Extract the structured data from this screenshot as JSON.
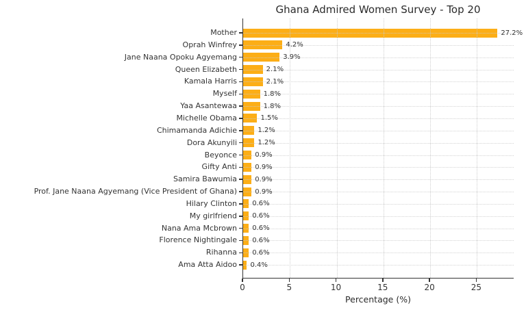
{
  "chart_data": {
    "type": "bar",
    "orientation": "horizontal",
    "title": "Ghana Admired Women Survey - Top 20",
    "xlabel": "Percentage (%)",
    "ylabel": "",
    "categories": [
      "Mother",
      "Oprah Winfrey",
      "Jane Naana Opoku Agyemang",
      "Queen Elizabeth",
      "Kamala Harris",
      "Myself",
      "Yaa Asantewaa",
      "Michelle Obama",
      "Chimamanda Adichie",
      "Dora Akunyili",
      "Beyonce",
      "Gifty Anti",
      "Samira Bawumia",
      "Prof. Jane Naana Agyemang (Vice President of Ghana)",
      "Hilary Clinton",
      "My girlfriend",
      "Nana Ama Mcbrown",
      "Florence Nightingale",
      "Rihanna",
      "Ama Atta Aidoo"
    ],
    "values": [
      27.2,
      4.2,
      3.9,
      2.1,
      2.1,
      1.8,
      1.8,
      1.5,
      1.2,
      1.2,
      0.9,
      0.9,
      0.9,
      0.9,
      0.6,
      0.6,
      0.6,
      0.6,
      0.6,
      0.4
    ],
    "value_labels": [
      "27.2%",
      "4.2%",
      "3.9%",
      "2.1%",
      "2.1%",
      "1.8%",
      "1.8%",
      "1.5%",
      "1.2%",
      "1.2%",
      "0.9%",
      "0.9%",
      "0.9%",
      "0.9%",
      "0.6%",
      "0.6%",
      "0.6%",
      "0.6%",
      "0.6%",
      "0.4%"
    ],
    "xlim": [
      0,
      29.0
    ],
    "xticks": [
      0,
      5,
      10,
      15,
      20,
      25
    ],
    "grid": true,
    "grid_style": "dotted",
    "legend": "none",
    "bar_color": "#FCAE17",
    "background_color": "#FFFFFF",
    "text_color": "#333333"
  }
}
